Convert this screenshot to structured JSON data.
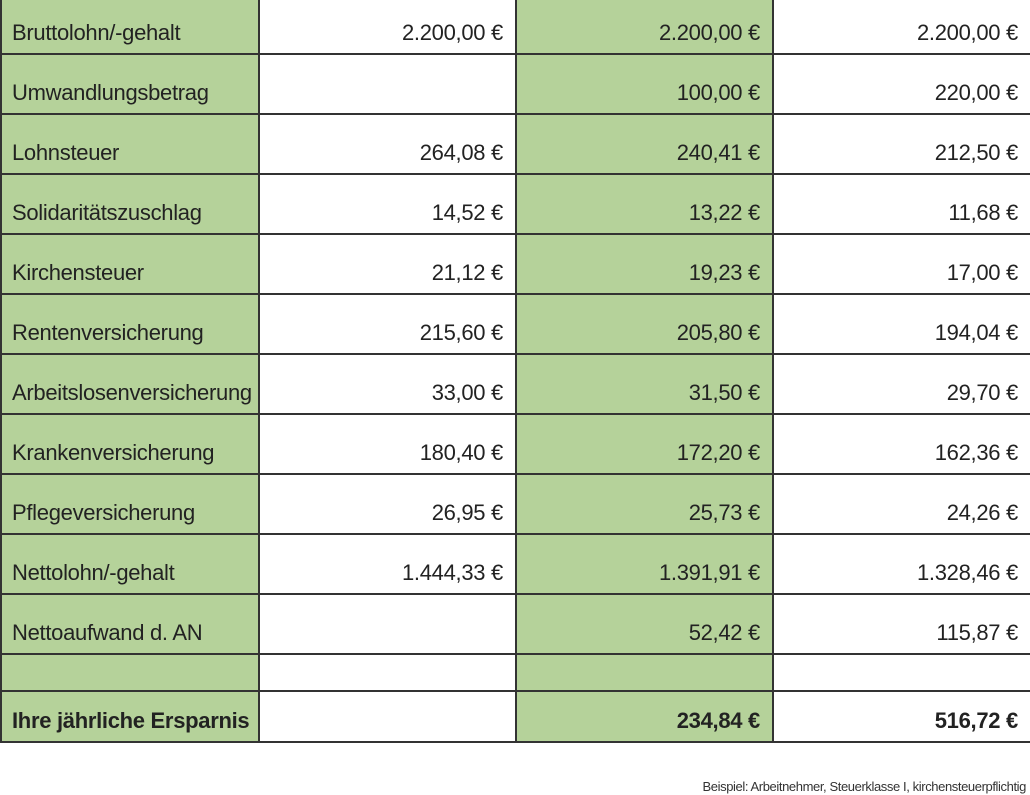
{
  "rows": [
    {
      "label": "Bruttolohn/-gehalt",
      "col1": "2.200,00 €",
      "col2": "2.200,00 €",
      "col3": "2.200,00 €"
    },
    {
      "label": "Umwandlungsbetrag",
      "col1": "",
      "col2": "100,00 €",
      "col3": "220,00 €"
    },
    {
      "label": "Lohnsteuer",
      "col1": "264,08 €",
      "col2": "240,41 €",
      "col3": "212,50 €"
    },
    {
      "label": "Solidaritätszuschlag",
      "col1": "14,52 €",
      "col2": "13,22 €",
      "col3": "11,68 €"
    },
    {
      "label": "Kirchensteuer",
      "col1": "21,12 €",
      "col2": "19,23 €",
      "col3": "17,00 €"
    },
    {
      "label": "Rentenversicherung",
      "col1": "215,60 €",
      "col2": "205,80 €",
      "col3": "194,04 €"
    },
    {
      "label": "Arbeitslosenversicherung",
      "col1": "33,00 €",
      "col2": "31,50 €",
      "col3": "29,70 €"
    },
    {
      "label": "Krankenversicherung",
      "col1": "180,40 €",
      "col2": "172,20 €",
      "col3": "162,36 €"
    },
    {
      "label": "Pflegeversicherung",
      "col1": "26,95 €",
      "col2": "25,73 €",
      "col3": "24,26 €"
    },
    {
      "label": "Nettolohn/-gehalt",
      "col1": "1.444,33 €",
      "col2": "1.391,91 €",
      "col3": "1.328,46 €"
    },
    {
      "label": "Nettoaufwand d. AN",
      "col1": "",
      "col2": "52,42 €",
      "col3": "115,87 €"
    }
  ],
  "total": {
    "label": "Ihre jährliche Ersparnis",
    "col1": "",
    "col2": "234,84 €",
    "col3": "516,72 €"
  },
  "footnote": "Beispiel: Arbeitnehmer, Steuerklasse I, kirchensteuerpflichtig",
  "colors": {
    "green": "#b5d29a",
    "white": "#ffffff",
    "border": "#333333"
  }
}
